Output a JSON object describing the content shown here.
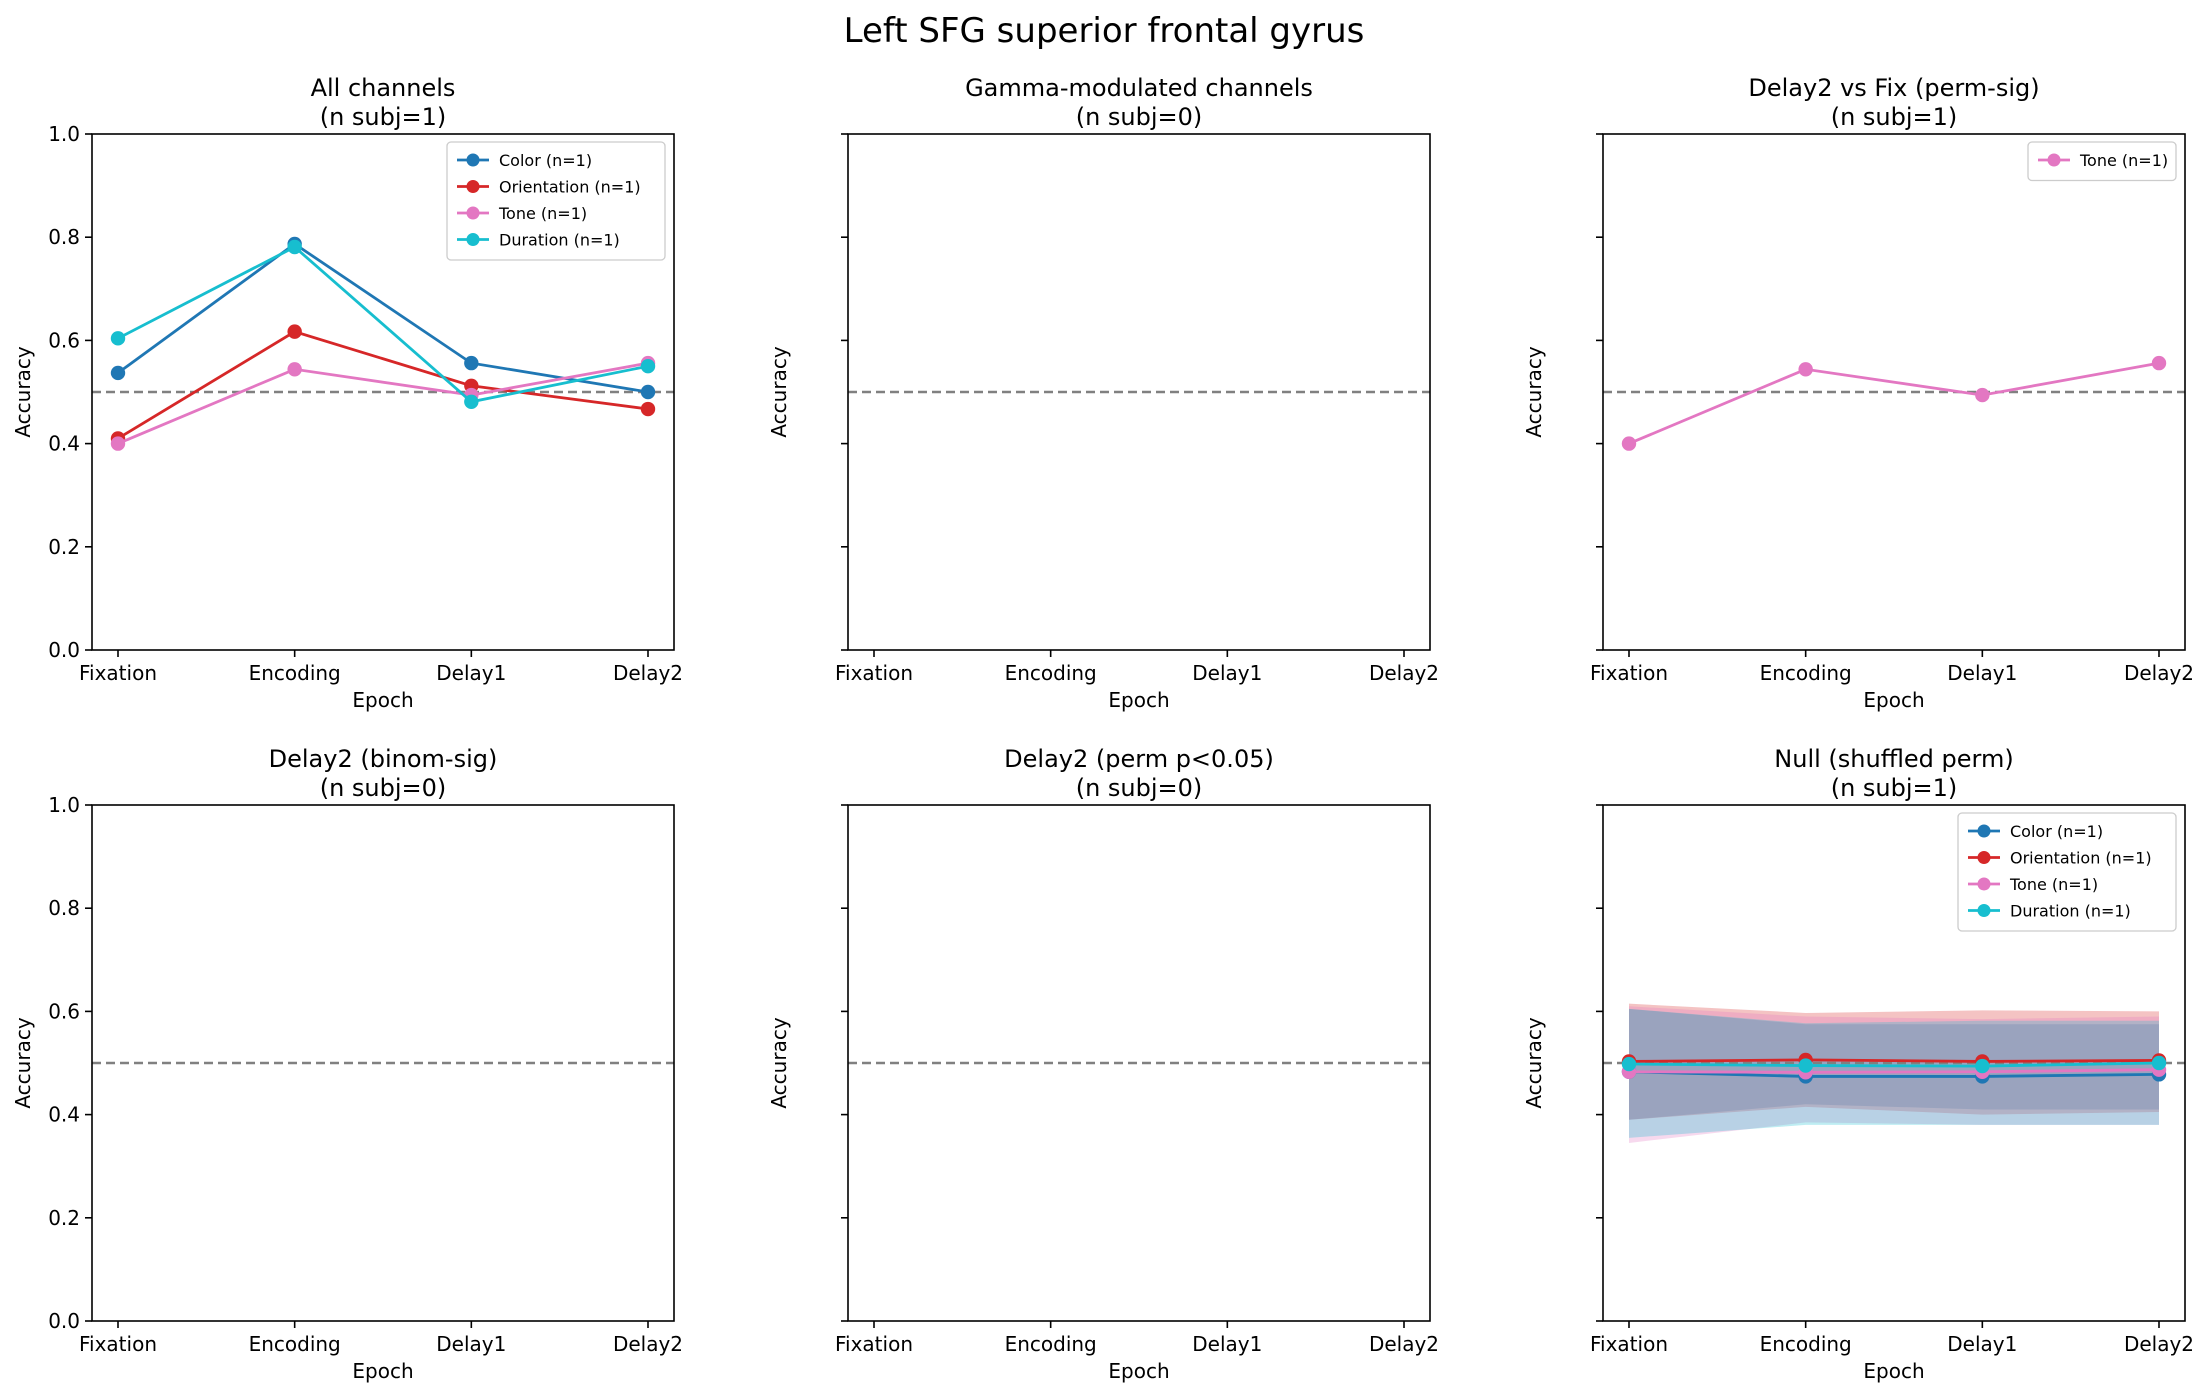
{
  "figure": {
    "title": "Left SFG superior frontal gyrus"
  },
  "colors": {
    "Color": "#1f77b4",
    "Orientation": "#d62728",
    "Tone": "#e377c2",
    "Duration": "#17becf",
    "chance_line": "#808080"
  },
  "chart_data": [
    {
      "type": "line",
      "title": "All channels\n(n subj=1)",
      "xlabel": "Epoch",
      "ylabel": "Accuracy",
      "categories": [
        "Fixation",
        "Encoding",
        "Delay1",
        "Delay2"
      ],
      "ylim": [
        0,
        1
      ],
      "yticks": [
        0.0,
        0.2,
        0.4,
        0.6,
        0.8,
        1.0
      ],
      "show_ytick_labels": true,
      "show_xtick_labels": true,
      "show_xlabel": true,
      "chance": 0.5,
      "grid": false,
      "legend": "upper right",
      "series": [
        {
          "name": "Color (n=1)",
          "color": "#1f77b4",
          "values": [
            0.537,
            0.787,
            0.556,
            0.5
          ]
        },
        {
          "name": "Orientation (n=1)",
          "color": "#d62728",
          "values": [
            0.41,
            0.617,
            0.512,
            0.467
          ]
        },
        {
          "name": "Tone (n=1)",
          "color": "#e377c2",
          "values": [
            0.4,
            0.544,
            0.494,
            0.556
          ]
        },
        {
          "name": "Duration (n=1)",
          "color": "#17becf",
          "values": [
            0.604,
            0.781,
            0.481,
            0.55
          ]
        }
      ]
    },
    {
      "type": "line",
      "title": "Gamma-modulated channels\n(n subj=0)",
      "xlabel": "Epoch",
      "ylabel": "Accuracy",
      "categories": [
        "Fixation",
        "Encoding",
        "Delay1",
        "Delay2"
      ],
      "ylim": [
        0,
        1
      ],
      "yticks": [
        0.0,
        0.2,
        0.4,
        0.6,
        0.8,
        1.0
      ],
      "show_ytick_labels": false,
      "show_xtick_labels": true,
      "show_xlabel": true,
      "chance": 0.5,
      "grid": false,
      "series": []
    },
    {
      "type": "line",
      "title": "Delay2 vs Fix (perm-sig)\n(n subj=1)",
      "xlabel": "Epoch",
      "ylabel": "Accuracy",
      "categories": [
        "Fixation",
        "Encoding",
        "Delay1",
        "Delay2"
      ],
      "ylim": [
        0,
        1
      ],
      "yticks": [
        0.0,
        0.2,
        0.4,
        0.6,
        0.8,
        1.0
      ],
      "show_ytick_labels": false,
      "show_xtick_labels": true,
      "show_xlabel": true,
      "chance": 0.5,
      "grid": false,
      "legend": "upper right",
      "series": [
        {
          "name": "Tone (n=1)",
          "color": "#e377c2",
          "values": [
            0.4,
            0.544,
            0.494,
            0.556
          ]
        }
      ]
    },
    {
      "type": "line",
      "title": "Delay2 (binom-sig)\n(n subj=0)",
      "xlabel": "Epoch",
      "ylabel": "Accuracy",
      "categories": [
        "Fixation",
        "Encoding",
        "Delay1",
        "Delay2"
      ],
      "ylim": [
        0,
        1
      ],
      "yticks": [
        0.0,
        0.2,
        0.4,
        0.6,
        0.8,
        1.0
      ],
      "show_ytick_labels": true,
      "show_xtick_labels": true,
      "show_xlabel": true,
      "chance": 0.5,
      "grid": false,
      "series": []
    },
    {
      "type": "line",
      "title": "Delay2 (perm p<0.05)\n(n subj=0)",
      "xlabel": "Epoch",
      "ylabel": "Accuracy",
      "categories": [
        "Fixation",
        "Encoding",
        "Delay1",
        "Delay2"
      ],
      "ylim": [
        0,
        1
      ],
      "yticks": [
        0.0,
        0.2,
        0.4,
        0.6,
        0.8,
        1.0
      ],
      "show_ytick_labels": false,
      "show_xtick_labels": true,
      "show_xlabel": true,
      "chance": 0.5,
      "grid": false,
      "series": []
    },
    {
      "type": "line",
      "title": "Null (shuffled perm)\n(n subj=1)",
      "xlabel": "Epoch",
      "ylabel": "Accuracy",
      "categories": [
        "Fixation",
        "Encoding",
        "Delay1",
        "Delay2"
      ],
      "ylim": [
        0,
        1
      ],
      "yticks": [
        0.0,
        0.2,
        0.4,
        0.6,
        0.8,
        1.0
      ],
      "show_ytick_labels": false,
      "show_xtick_labels": true,
      "show_xlabel": true,
      "chance": 0.5,
      "grid": false,
      "legend": "upper right",
      "series": [
        {
          "name": "Color (n=1)",
          "color": "#1f77b4",
          "values": [
            0.483,
            0.474,
            0.474,
            0.478
          ],
          "band_low": [
            0.39,
            0.42,
            0.41,
            0.41
          ],
          "band_high": [
            0.605,
            0.575,
            0.575,
            0.575
          ]
        },
        {
          "name": "Orientation (n=1)",
          "color": "#d62728",
          "values": [
            0.503,
            0.506,
            0.503,
            0.505
          ],
          "band_low": [
            0.39,
            0.415,
            0.4,
            0.405
          ],
          "band_high": [
            0.615,
            0.597,
            0.602,
            0.6
          ]
        },
        {
          "name": "Tone (n=1)",
          "color": "#e377c2",
          "values": [
            0.483,
            0.482,
            0.483,
            0.487
          ],
          "band_low": [
            0.345,
            0.385,
            0.38,
            0.38
          ],
          "band_high": [
            0.61,
            0.59,
            0.585,
            0.59
          ]
        },
        {
          "name": "Duration (n=1)",
          "color": "#17becf",
          "values": [
            0.498,
            0.495,
            0.494,
            0.5
          ],
          "band_low": [
            0.355,
            0.38,
            0.38,
            0.38
          ],
          "band_high": [
            0.605,
            0.577,
            0.582,
            0.582
          ]
        }
      ]
    }
  ]
}
